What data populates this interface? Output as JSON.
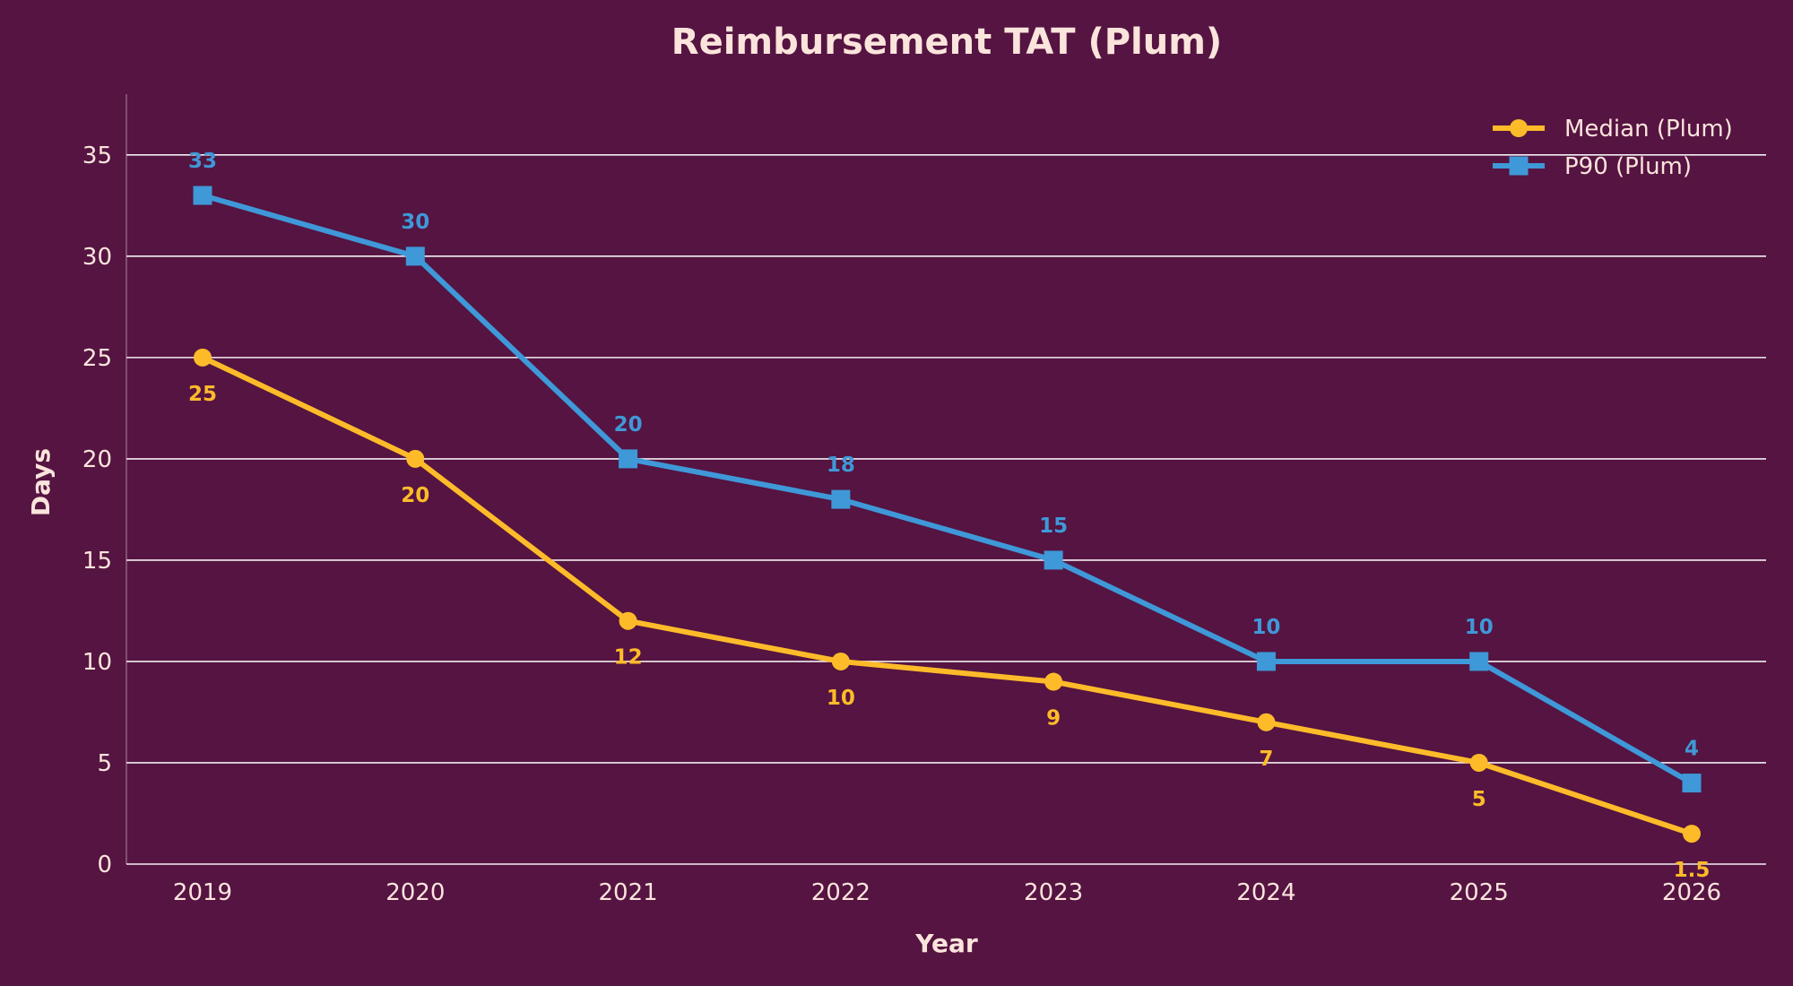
{
  "colors": {
    "background": "#551441",
    "text": "#fbe4dc",
    "grid": "#f4eef2",
    "axis": "#d9b8c8",
    "median": "#fdbb2a",
    "p90": "#3f98d8"
  },
  "chart_data": {
    "type": "line",
    "title": "Reimbursement TAT (Plum)",
    "xlabel": "Year",
    "ylabel": "Days",
    "categories": [
      "2019",
      "2020",
      "2021",
      "2022",
      "2023",
      "2024",
      "2025",
      "2026"
    ],
    "ylim": [
      0,
      38
    ],
    "yticks": [
      0,
      5,
      10,
      15,
      20,
      25,
      30,
      35
    ],
    "grid": true,
    "legend_position": "top-right",
    "series": [
      {
        "name": "Median (Plum)",
        "marker": "circle",
        "color_key": "median",
        "label_position": "below",
        "values": [
          25,
          20,
          12,
          10,
          9,
          7,
          5,
          1.5
        ],
        "labels": [
          "25",
          "20",
          "12",
          "10",
          "9",
          "7",
          "5",
          "1.5"
        ]
      },
      {
        "name": "P90 (Plum)",
        "marker": "square",
        "color_key": "p90",
        "label_position": "above",
        "values": [
          33,
          30,
          20,
          18,
          15,
          10,
          10,
          4
        ],
        "labels": [
          "33",
          "30",
          "20",
          "18",
          "15",
          "10",
          "10",
          "4"
        ]
      }
    ]
  }
}
